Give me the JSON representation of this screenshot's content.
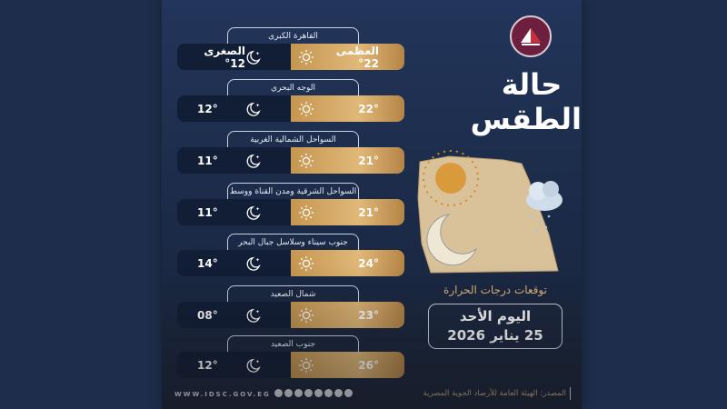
{
  "title": {
    "line1": "حالة",
    "line2": "الطقس"
  },
  "subtitle": "توقعات درجات الحرارة",
  "date": {
    "day": "اليوم الأحد",
    "full": "25 يناير 2026"
  },
  "footer": {
    "website": "WWW.IDSC.GOV.EG",
    "source": "المصدر: الهيئة العامة للأرصاد الجوية المصرية"
  },
  "colors": {
    "background": "#1d2d4b",
    "day_bar": "#d9ae6c",
    "night_bar": "#121d36",
    "accent": "#e2b779"
  },
  "icons": {
    "day": "sun-icon",
    "night": "moon-star-icon"
  },
  "regions": [
    {
      "name": "القاهرة الكبرى",
      "max": "العظمى 22°",
      "min": "الصغرى 12°"
    },
    {
      "name": "الوجه البحري",
      "max": "22°",
      "min": "12°"
    },
    {
      "name": "السواحل الشمالية الغربية",
      "max": "21°",
      "min": "11°"
    },
    {
      "name": "السواحل الشرقية ومدن القناة ووسط سيناء",
      "max": "21°",
      "min": "11°"
    },
    {
      "name": "جنوب سيناء وسلاسل جبال البحر الأحمر",
      "max": "24°",
      "min": "14°"
    },
    {
      "name": "شمال الصعيد",
      "max": "23°",
      "min": "08°"
    },
    {
      "name": "جنوب الصعيد",
      "max": "26°",
      "min": "12°"
    }
  ]
}
